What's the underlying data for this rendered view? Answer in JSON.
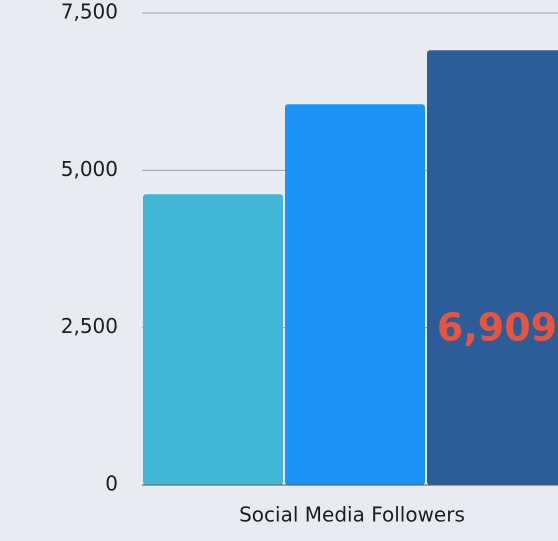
{
  "chart_data": {
    "type": "bar",
    "categories": [
      "Social Media Followers"
    ],
    "series": [
      {
        "color": "#42b6d5",
        "values": [
          4620
        ]
      },
      {
        "color": "#1b94f5",
        "values": [
          6050
        ]
      },
      {
        "color": "#2c5d99",
        "values": [
          6909
        ],
        "value_labels": [
          "6,909"
        ],
        "label_color": "#e8553e"
      }
    ],
    "ylim": [
      0,
      7500
    ],
    "yticks": [
      0,
      {
        "value": 2500,
        "label": "2,500"
      },
      {
        "value": 5000,
        "label": "5,000"
      },
      {
        "value": 7500,
        "label": "7,500"
      }
    ],
    "grid": true
  }
}
